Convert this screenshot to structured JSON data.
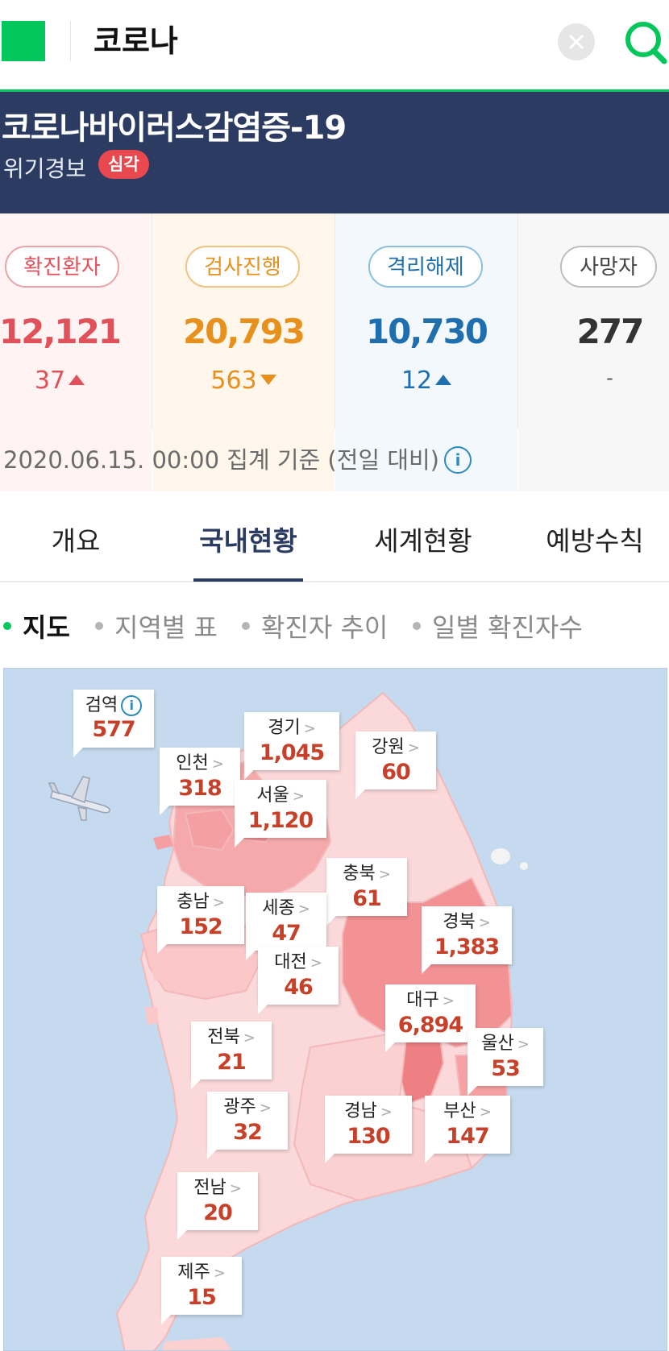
{
  "search": {
    "query": "코로나",
    "clear_icon": "close-icon",
    "search_icon": "search-icon"
  },
  "banner": {
    "title": "코로나바이러스감염증-19",
    "alert_label": "위기경보",
    "alert_level": "심각"
  },
  "stats": {
    "confirmed": {
      "label": "확진환자",
      "value": "12,121",
      "delta": "37",
      "direction": "up",
      "color": "#e0515a"
    },
    "testing": {
      "label": "검사진행",
      "value": "20,793",
      "delta": "563",
      "direction": "down",
      "color": "#e8901c"
    },
    "released": {
      "label": "격리해제",
      "value": "10,730",
      "delta": "12",
      "direction": "up",
      "color": "#1f6fae"
    },
    "deaths": {
      "label": "사망자",
      "value": "277",
      "delta": "-",
      "direction": "none",
      "color": "#333333"
    },
    "footnote": "2020.06.15. 00:00 집계 기준 (전일 대비)"
  },
  "tabs": [
    {
      "label": "개요",
      "active": false
    },
    {
      "label": "국내현황",
      "active": true
    },
    {
      "label": "세계현황",
      "active": false
    },
    {
      "label": "예방수칙",
      "active": false
    }
  ],
  "subtabs": [
    {
      "label": "지도",
      "active": true
    },
    {
      "label": "지역별 표",
      "active": false
    },
    {
      "label": "확진자 추이",
      "active": false
    },
    {
      "label": "일별 확진자수",
      "active": false
    }
  ],
  "regions": {
    "quarantine": {
      "name": "검역",
      "value": "577"
    },
    "gyeonggi": {
      "name": "경기",
      "value": "1,045"
    },
    "gangwon": {
      "name": "강원",
      "value": "60"
    },
    "incheon": {
      "name": "인천",
      "value": "318"
    },
    "seoul": {
      "name": "서울",
      "value": "1,120"
    },
    "chungbuk": {
      "name": "충북",
      "value": "61"
    },
    "chungnam": {
      "name": "충남",
      "value": "152"
    },
    "sejong": {
      "name": "세종",
      "value": "47"
    },
    "gyeongbuk": {
      "name": "경북",
      "value": "1,383"
    },
    "daejeon": {
      "name": "대전",
      "value": "46"
    },
    "daegu": {
      "name": "대구",
      "value": "6,894"
    },
    "jeonbuk": {
      "name": "전북",
      "value": "21"
    },
    "ulsan": {
      "name": "울산",
      "value": "53"
    },
    "gwangju": {
      "name": "광주",
      "value": "32"
    },
    "gyeongnam": {
      "name": "경남",
      "value": "130"
    },
    "busan": {
      "name": "부산",
      "value": "147"
    },
    "jeonnam": {
      "name": "전남",
      "value": "20"
    },
    "jeju": {
      "name": "제주",
      "value": "15"
    }
  }
}
